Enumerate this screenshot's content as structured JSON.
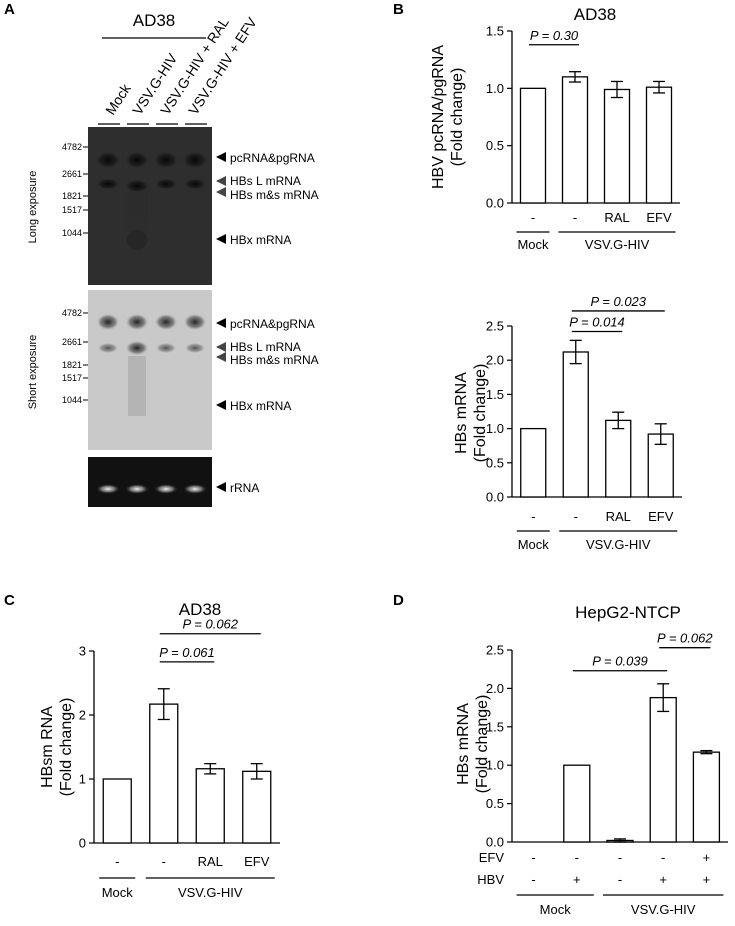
{
  "panel_a": {
    "letter": "A",
    "title": "AD38",
    "lanes": [
      "Mock",
      "VSV.G-HIV",
      "VSV.G-HIV + RAL",
      "VSV.G-HIV + EFV"
    ],
    "blots": [
      {
        "exposure": "Long exposure",
        "ladder": [
          "4782",
          "2661",
          "1821",
          "1517",
          "1044"
        ],
        "bands": [
          "pcRNA&pgRNA",
          "HBs L mRNA",
          "HBs m&s mRNA",
          "HBx mRNA"
        ]
      },
      {
        "exposure": "Short exposure",
        "ladder": [
          "4782",
          "2661",
          "1821",
          "1517",
          "1044"
        ],
        "bands": [
          "pcRNA&pgRNA",
          "HBs L mRNA",
          "HBs m&s mRNA",
          "HBx mRNA"
        ]
      }
    ],
    "loading_control": "rRNA"
  },
  "chart_data": [
    {
      "id": "B-top",
      "letter": "B",
      "type": "bar",
      "title": "AD38",
      "ylabel": [
        "HBV pcRNA/pgRNA",
        "(Fold change)"
      ],
      "ylim": [
        0,
        1.5
      ],
      "yticks": [
        "0.0",
        "0.5",
        "1.0",
        "1.5"
      ],
      "ytick_values": [
        0,
        0.5,
        1.0,
        1.5
      ],
      "categories": [
        "-",
        "-",
        "RAL",
        "EFV"
      ],
      "values": [
        1.0,
        1.1,
        0.99,
        1.01
      ],
      "errors": [
        0,
        0.045,
        0.07,
        0.05
      ],
      "groups": [
        {
          "label": "Mock",
          "from": 0,
          "to": 0
        },
        {
          "label": "VSV.G-HIV",
          "from": 1,
          "to": 3
        }
      ],
      "annotations": [
        {
          "text": "P = 0.30",
          "from": 0,
          "to": 1,
          "y": 1.38
        }
      ]
    },
    {
      "id": "B-bottom",
      "type": "bar",
      "title": "",
      "ylabel": [
        "HBs mRNA",
        "(Fold change)"
      ],
      "ylim": [
        0,
        2.5
      ],
      "yticks": [
        "0.0",
        "0.5",
        "1.0",
        "1.5",
        "2.0",
        "2.5"
      ],
      "ytick_values": [
        0,
        0.5,
        1.0,
        1.5,
        2.0,
        2.5
      ],
      "categories": [
        "-",
        "-",
        "RAL",
        "EFV"
      ],
      "values": [
        1.0,
        2.12,
        1.12,
        0.92
      ],
      "errors": [
        0,
        0.17,
        0.12,
        0.15
      ],
      "groups": [
        {
          "label": "Mock",
          "from": 0,
          "to": 0
        },
        {
          "label": "VSV.G-HIV",
          "from": 1,
          "to": 3
        }
      ],
      "annotations": [
        {
          "text": "P = 0.014",
          "from": 1,
          "to": 2,
          "y": 2.42
        },
        {
          "text": "P = 0.023",
          "from": 1,
          "to": 3,
          "y": 2.72
        }
      ]
    },
    {
      "id": "C",
      "letter": "C",
      "type": "bar",
      "title": "AD38",
      "ylabel": [
        "HBsm RNA",
        "(Fold change)"
      ],
      "ylim": [
        0,
        3
      ],
      "yticks": [
        "0",
        "1",
        "2",
        "3"
      ],
      "ytick_values": [
        0,
        1,
        2,
        3
      ],
      "categories": [
        "-",
        "-",
        "RAL",
        "EFV"
      ],
      "values": [
        1.0,
        2.17,
        1.16,
        1.12
      ],
      "errors": [
        0,
        0.24,
        0.08,
        0.12
      ],
      "groups": [
        {
          "label": "Mock",
          "from": 0,
          "to": 0
        },
        {
          "label": "VSV.G-HIV",
          "from": 1,
          "to": 3
        }
      ],
      "annotations": [
        {
          "text": "P = 0.061",
          "from": 1,
          "to": 2,
          "y": 2.83
        },
        {
          "text": "P = 0.062",
          "from": 1,
          "to": 3,
          "y": 3.27
        }
      ]
    },
    {
      "id": "D",
      "letter": "D",
      "type": "bar",
      "title": "HepG2-NTCP",
      "ylabel": [
        "HBs mRNA",
        "(Fold change)"
      ],
      "ylim": [
        0,
        2.5
      ],
      "yticks": [
        "0.0",
        "0.5",
        "1.0",
        "1.5",
        "2.0",
        "2.5"
      ],
      "ytick_values": [
        0,
        0.5,
        1.0,
        1.5,
        2.0,
        2.5
      ],
      "categories": [
        "",
        "",
        "",
        "",
        ""
      ],
      "values": [
        0.0,
        1.0,
        0.02,
        1.88,
        1.17
      ],
      "errors": [
        0,
        0,
        0.02,
        0.18,
        0.02
      ],
      "rows": [
        {
          "label": "EFV",
          "values": [
            "-",
            "-",
            "-",
            "-",
            "+"
          ]
        },
        {
          "label": "HBV",
          "values": [
            "-",
            "+",
            "-",
            "+",
            "+"
          ]
        }
      ],
      "groups": [
        {
          "label": "Mock",
          "from": 0,
          "to": 1
        },
        {
          "label": "VSV.G-HIV",
          "from": 2,
          "to": 4
        }
      ],
      "annotations": [
        {
          "text": "P = 0.039",
          "from": 1,
          "to": 3,
          "y": 2.23
        },
        {
          "text": "P = 0.062",
          "from": 3,
          "to": 4,
          "y": 2.53
        }
      ]
    }
  ]
}
